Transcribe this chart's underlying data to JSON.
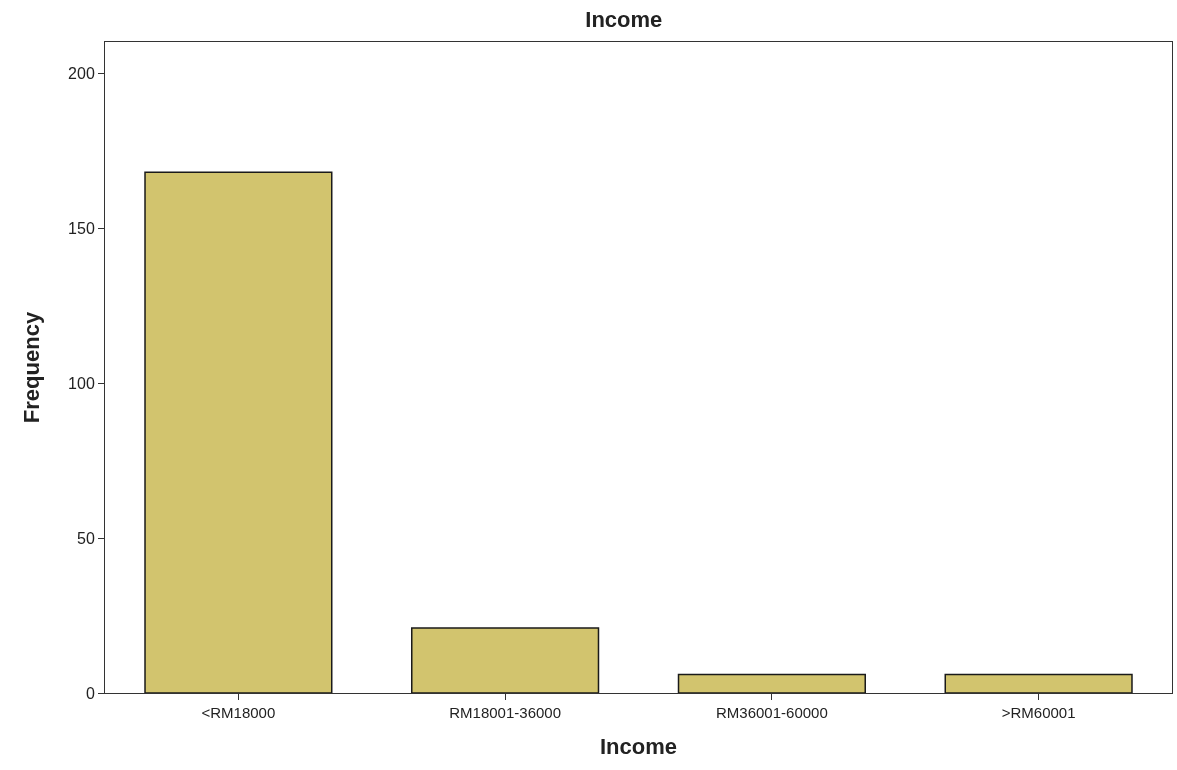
{
  "chart_data": {
    "type": "bar",
    "title": "Income",
    "xlabel": "Income",
    "ylabel": "Frequency",
    "categories": [
      "<RM18000",
      "RM18001-36000",
      "RM36001-60000",
      ">RM60001"
    ],
    "values": [
      168,
      21,
      6,
      6
    ],
    "color": "#d2c46e",
    "ylim": [
      0,
      210
    ],
    "yticks": [
      0,
      50,
      100,
      150,
      200
    ],
    "grid": false
  }
}
